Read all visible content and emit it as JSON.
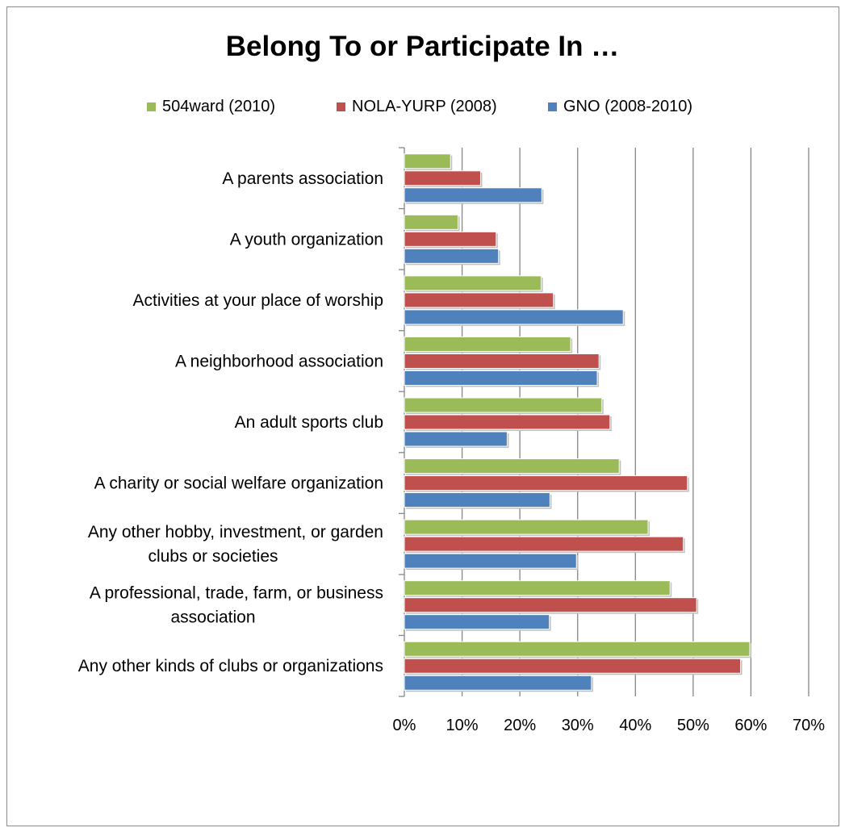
{
  "chart_data": {
    "type": "bar",
    "orientation": "horizontal",
    "title": "Belong To or Participate In …",
    "xlabel": "",
    "ylabel": "",
    "xlim": [
      0,
      70
    ],
    "x_tick_labels": [
      "0%",
      "10%",
      "20%",
      "30%",
      "40%",
      "50%",
      "60%",
      "70%"
    ],
    "grid": "vertical major gridlines",
    "legend_position": "top",
    "categories": [
      [
        "A parents association"
      ],
      [
        "A youth organization"
      ],
      [
        "Activities at your place of worship"
      ],
      [
        "A neighborhood association"
      ],
      [
        "An adult sports club"
      ],
      [
        "A charity or social welfare organization"
      ],
      [
        "Any other hobby, investment, or garden",
        "clubs or societies"
      ],
      [
        "A professional, trade, farm, or business",
        "association"
      ],
      [
        "Any other kinds of clubs or organizations"
      ]
    ],
    "series": [
      {
        "name": "504ward (2010)",
        "color": "#9bbb59",
        "values": [
          8,
          9.3,
          23.7,
          28.8,
          34.2,
          37.2,
          42.2,
          46,
          59.8
        ]
      },
      {
        "name": "NOLA-YURP (2008)",
        "color": "#c0504d",
        "values": [
          13.2,
          15.9,
          25.8,
          33.7,
          35.6,
          49,
          48.3,
          50.6,
          58.2
        ]
      },
      {
        "name": "GNO (2008-2010)",
        "color": "#4f81bd",
        "values": [
          23.8,
          16.3,
          37.9,
          33.4,
          17.8,
          25.2,
          29.8,
          25.1,
          32.4
        ]
      }
    ]
  }
}
